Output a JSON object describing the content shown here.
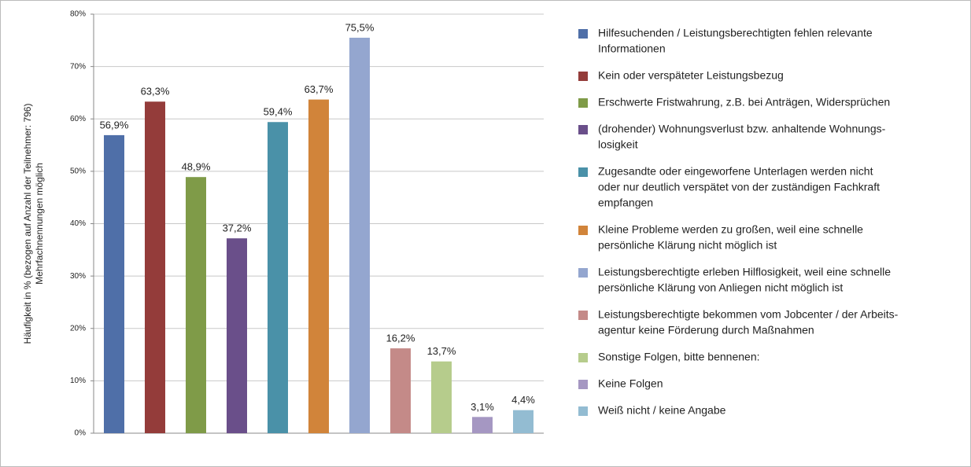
{
  "chart_data": {
    "type": "bar",
    "y_label": [
      "Häufigkeit in % (bezogen auf Anzahl der Teilnehmer: 796)",
      "Mehrfachnennungen möglich"
    ],
    "categories": [
      [
        "Hilfesuchenden / Leistungsberechtigten fehlen relevante",
        "Informationen"
      ],
      [
        "Kein oder verspäteter Leistungsbezug"
      ],
      [
        "Erschwerte Fristwahrung, z.B. bei Anträgen, Widersprüchen"
      ],
      [
        "(drohender) Wohnungsverlust bzw. anhaltende Wohnungs-",
        "losigkeit"
      ],
      [
        "Zugesandte oder eingeworfene Unterlagen werden nicht",
        "oder nur deutlich verspätet von der zuständigen Fachkraft",
        "empfangen"
      ],
      [
        "Kleine Probleme werden zu großen, weil eine schnelle",
        "persönliche Klärung nicht möglich ist"
      ],
      [
        "Leistungsberechtigte erleben Hilflosigkeit, weil eine schnelle",
        "persönliche Klärung von Anliegen nicht möglich ist"
      ],
      [
        "Leistungsberechtigte bekommen vom Jobcenter / der Arbeits-",
        "agentur keine Förderung durch Maßnahmen"
      ],
      [
        "Sonstige Folgen, bitte bennenen:"
      ],
      [
        "Keine Folgen"
      ],
      [
        "Weiß nicht / keine Angabe"
      ]
    ],
    "values": [
      56.9,
      63.3,
      48.9,
      37.2,
      59.4,
      63.7,
      75.5,
      16.2,
      13.7,
      3.1,
      4.4
    ],
    "value_labels": [
      "56,9%",
      "63,3%",
      "48,9%",
      "37,2%",
      "59,4%",
      "63,7%",
      "75,5%",
      "16,2%",
      "13,7%",
      "3,1%",
      "4,4%"
    ],
    "colors": [
      "#4f6fa8",
      "#943c3a",
      "#7f9b48",
      "#6a4f8a",
      "#4a91a8",
      "#d1843a",
      "#94a6cf",
      "#c48a88",
      "#b6cc8c",
      "#a597c2",
      "#93bcd2"
    ],
    "ylim": [
      0,
      80
    ],
    "yticks": [
      {
        "value": 0,
        "label": "0%"
      },
      {
        "value": 10,
        "label": "10%"
      },
      {
        "value": 20,
        "label": "20%"
      },
      {
        "value": 30,
        "label": "30%"
      },
      {
        "value": 40,
        "label": "40%"
      },
      {
        "value": 50,
        "label": "50%"
      },
      {
        "value": 60,
        "label": "60%"
      },
      {
        "value": 70,
        "label": "70%"
      },
      {
        "value": 80,
        "label": "80%"
      }
    ],
    "grid": true,
    "legend": "right"
  }
}
